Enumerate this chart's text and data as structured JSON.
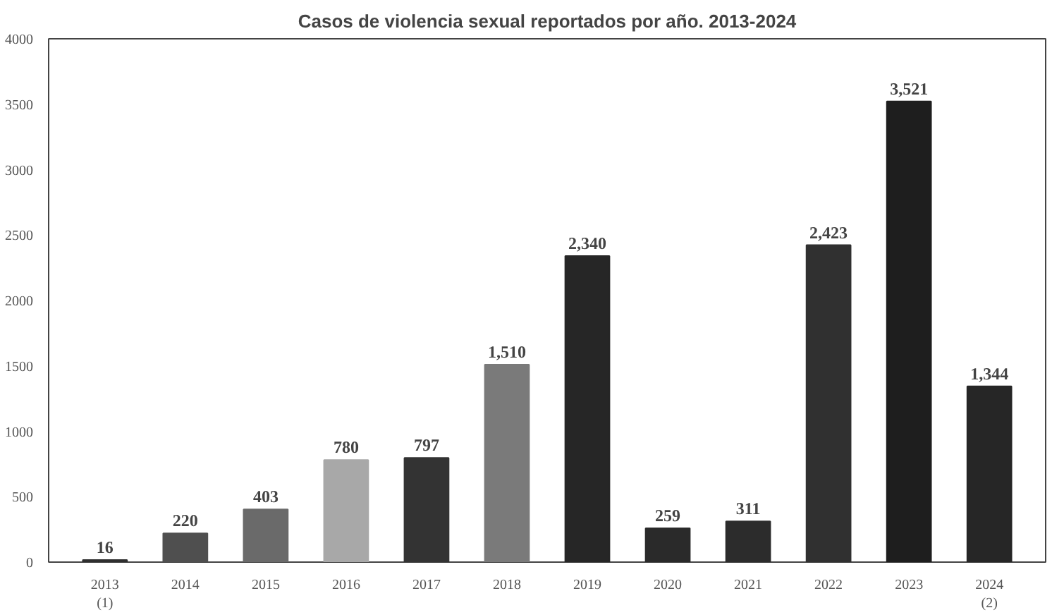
{
  "chart_data": {
    "type": "bar",
    "title": "Casos de violencia sexual reportados por año. 2013-2024",
    "categories": [
      "2013\n(1)",
      "2014",
      "2015",
      "2016",
      "2017",
      "2018",
      "2019",
      "2020",
      "2021",
      "2022",
      "2023",
      "2024\n(2)"
    ],
    "values": [
      16,
      220,
      403,
      780,
      797,
      1510,
      2340,
      259,
      311,
      2423,
      3521,
      1344
    ],
    "colors": [
      "#2e2e2e",
      "#4f4f4f",
      "#6a6a6a",
      "#a8a8a8",
      "#333333",
      "#7a7a7a",
      "#262626",
      "#2a2a2a",
      "#2c2c2c",
      "#303030",
      "#1e1e1e",
      "#262626"
    ],
    "value_labels": [
      "16",
      "220",
      "403",
      "780",
      "797",
      "1,510",
      "2,340",
      "259",
      "311",
      "2,423",
      "3,521",
      "1,344"
    ],
    "ylim": [
      0,
      4000
    ],
    "yticks": [
      0,
      500,
      1000,
      1500,
      2000,
      2500,
      3000,
      3500,
      4000
    ],
    "grid": false
  }
}
